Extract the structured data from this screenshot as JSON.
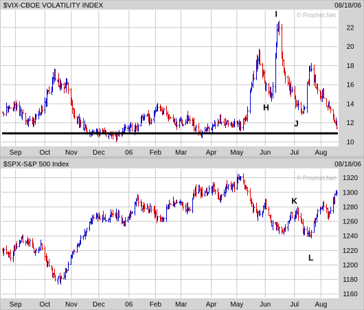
{
  "colors": {
    "background": "#ffffff",
    "header_bg": "#d4d4d4",
    "axis_bg": "#d4d4d4",
    "grid": "#c8c8c8",
    "up_bar": "#0000cc",
    "down_bar": "#dd0000",
    "support_line": "#000000",
    "watermark": "#b4b4b4"
  },
  "chart_data": [
    {
      "type": "ohlc",
      "title": "$VIX-CBOE VOLATILITY INDEX",
      "date": "08/18/06",
      "watermark": "© Prophet.Net",
      "ylim": [
        9.6,
        23.8
      ],
      "yticks": [
        10,
        12,
        14,
        16,
        18,
        20,
        22
      ],
      "grid": true,
      "x_range": [
        "2005-08-18",
        "2006-08-18"
      ],
      "xticks": [
        {
          "label": "Sep",
          "date": "2005-09-01"
        },
        {
          "label": "Oct",
          "date": "2005-10-03"
        },
        {
          "label": "Nov",
          "date": "2005-11-01"
        },
        {
          "label": "Dec",
          "date": "2005-12-01"
        },
        {
          "label": "06",
          "date": "2006-01-03"
        },
        {
          "label": "Feb",
          "date": "2006-02-01"
        },
        {
          "label": "Mar",
          "date": "2006-03-01"
        },
        {
          "label": "Apr",
          "date": "2006-04-03"
        },
        {
          "label": "May",
          "date": "2006-05-01"
        },
        {
          "label": "Jun",
          "date": "2006-06-01"
        },
        {
          "label": "Jul",
          "date": "2006-07-03"
        },
        {
          "label": "Aug",
          "date": "2006-08-01"
        }
      ],
      "closes": [
        [
          "2005-08-18",
          13.2
        ],
        [
          "2005-08-25",
          13.6
        ],
        [
          "2005-09-01",
          13.8
        ],
        [
          "2005-09-08",
          12.8
        ],
        [
          "2005-09-15",
          12.0
        ],
        [
          "2005-09-22",
          12.4
        ],
        [
          "2005-09-29",
          13.4
        ],
        [
          "2005-10-06",
          15.0
        ],
        [
          "2005-10-13",
          16.8
        ],
        [
          "2005-10-20",
          15.6
        ],
        [
          "2005-10-27",
          16.0
        ],
        [
          "2005-11-03",
          13.0
        ],
        [
          "2005-11-10",
          12.0
        ],
        [
          "2005-11-17",
          11.3
        ],
        [
          "2005-11-24",
          10.8
        ],
        [
          "2005-12-01",
          11.0
        ],
        [
          "2005-12-08",
          10.8
        ],
        [
          "2005-12-15",
          10.6
        ],
        [
          "2005-12-22",
          10.6
        ],
        [
          "2005-12-29",
          11.2
        ],
        [
          "2006-01-05",
          11.4
        ],
        [
          "2006-01-12",
          11.5
        ],
        [
          "2006-01-19",
          12.8
        ],
        [
          "2006-01-26",
          12.2
        ],
        [
          "2006-02-02",
          13.6
        ],
        [
          "2006-02-09",
          13.2
        ],
        [
          "2006-02-16",
          12.4
        ],
        [
          "2006-02-23",
          12.0
        ],
        [
          "2006-03-02",
          12.0
        ],
        [
          "2006-03-09",
          12.6
        ],
        [
          "2006-03-16",
          11.4
        ],
        [
          "2006-03-23",
          11.0
        ],
        [
          "2006-03-30",
          11.4
        ],
        [
          "2006-04-06",
          11.8
        ],
        [
          "2006-04-13",
          12.2
        ],
        [
          "2006-04-20",
          11.9
        ],
        [
          "2006-04-27",
          11.8
        ],
        [
          "2006-05-04",
          11.6
        ],
        [
          "2006-05-11",
          12.6
        ],
        [
          "2006-05-18",
          16.4
        ],
        [
          "2006-05-25",
          19.0
        ],
        [
          "2006-06-01",
          16.0
        ],
        [
          "2006-06-08",
          14.8
        ],
        [
          "2006-06-15",
          22.4
        ],
        [
          "2006-06-22",
          17.0
        ],
        [
          "2006-06-29",
          15.4
        ],
        [
          "2006-07-06",
          13.6
        ],
        [
          "2006-07-13",
          13.2
        ],
        [
          "2006-07-20",
          17.8
        ],
        [
          "2006-07-27",
          15.8
        ],
        [
          "2006-08-03",
          14.6
        ],
        [
          "2006-08-10",
          13.6
        ],
        [
          "2006-08-18",
          11.6
        ]
      ],
      "support_level": 10.9,
      "annotations": [
        {
          "text": "I",
          "date": "2006-06-13",
          "y": 23.4
        },
        {
          "text": "H",
          "date": "2006-06-02",
          "y": 13.6
        },
        {
          "text": "J",
          "date": "2006-07-05",
          "y": 11.9
        }
      ]
    },
    {
      "type": "ohlc",
      "title": "$SPX-S&P 500 Index",
      "date": "08/18/06",
      "watermark": "© Prophet.Net",
      "ylim": [
        1155,
        1332
      ],
      "yticks": [
        1160,
        1180,
        1200,
        1220,
        1240,
        1260,
        1280,
        1300,
        1320
      ],
      "grid": true,
      "x_range": [
        "2005-08-18",
        "2006-08-18"
      ],
      "xticks": [
        {
          "label": "Sep",
          "date": "2005-09-01"
        },
        {
          "label": "Oct",
          "date": "2005-10-03"
        },
        {
          "label": "Nov",
          "date": "2005-11-01"
        },
        {
          "label": "Dec",
          "date": "2005-12-01"
        },
        {
          "label": "06",
          "date": "2006-01-03"
        },
        {
          "label": "Feb",
          "date": "2006-02-01"
        },
        {
          "label": "Mar",
          "date": "2006-03-01"
        },
        {
          "label": "Apr",
          "date": "2006-04-03"
        },
        {
          "label": "May",
          "date": "2006-05-01"
        },
        {
          "label": "Jun",
          "date": "2006-06-01"
        },
        {
          "label": "Jul",
          "date": "2006-07-03"
        },
        {
          "label": "Aug",
          "date": "2006-08-01"
        }
      ],
      "closes": [
        [
          "2005-08-18",
          1220
        ],
        [
          "2005-08-25",
          1212
        ],
        [
          "2005-09-01",
          1224
        ],
        [
          "2005-09-08",
          1236
        ],
        [
          "2005-09-15",
          1232
        ],
        [
          "2005-09-22",
          1218
        ],
        [
          "2005-09-29",
          1226
        ],
        [
          "2005-10-06",
          1200
        ],
        [
          "2005-10-13",
          1182
        ],
        [
          "2005-10-20",
          1180
        ],
        [
          "2005-10-27",
          1195
        ],
        [
          "2005-11-03",
          1218
        ],
        [
          "2005-11-10",
          1232
        ],
        [
          "2005-11-17",
          1245
        ],
        [
          "2005-11-24",
          1264
        ],
        [
          "2005-12-01",
          1266
        ],
        [
          "2005-12-08",
          1262
        ],
        [
          "2005-12-15",
          1270
        ],
        [
          "2005-12-22",
          1268
        ],
        [
          "2005-12-29",
          1256
        ],
        [
          "2006-01-05",
          1272
        ],
        [
          "2006-01-12",
          1290
        ],
        [
          "2006-01-19",
          1278
        ],
        [
          "2006-01-26",
          1278
        ],
        [
          "2006-02-02",
          1266
        ],
        [
          "2006-02-09",
          1262
        ],
        [
          "2006-02-16",
          1284
        ],
        [
          "2006-02-23",
          1286
        ],
        [
          "2006-03-02",
          1284
        ],
        [
          "2006-03-09",
          1276
        ],
        [
          "2006-03-16",
          1304
        ],
        [
          "2006-03-23",
          1298
        ],
        [
          "2006-03-30",
          1300
        ],
        [
          "2006-04-06",
          1306
        ],
        [
          "2006-04-13",
          1290
        ],
        [
          "2006-04-20",
          1310
        ],
        [
          "2006-04-27",
          1308
        ],
        [
          "2006-05-04",
          1318
        ],
        [
          "2006-05-11",
          1305
        ],
        [
          "2006-05-18",
          1278
        ],
        [
          "2006-05-25",
          1268
        ],
        [
          "2006-06-01",
          1282
        ],
        [
          "2006-06-08",
          1258
        ],
        [
          "2006-06-15",
          1252
        ],
        [
          "2006-06-22",
          1246
        ],
        [
          "2006-06-29",
          1268
        ],
        [
          "2006-07-06",
          1272
        ],
        [
          "2006-07-13",
          1246
        ],
        [
          "2006-07-20",
          1240
        ],
        [
          "2006-07-27",
          1270
        ],
        [
          "2006-08-03",
          1282
        ],
        [
          "2006-08-10",
          1268
        ],
        [
          "2006-08-18",
          1302
        ]
      ],
      "annotations": [
        {
          "text": "K",
          "date": "2006-07-03",
          "y": 1288
        },
        {
          "text": "L",
          "date": "2006-07-21",
          "y": 1210
        }
      ]
    }
  ]
}
